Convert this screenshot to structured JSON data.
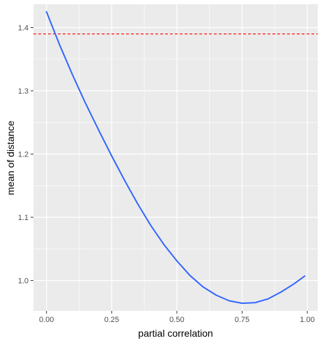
{
  "chart_data": {
    "type": "line",
    "title": "",
    "xlabel": "partial correlation",
    "ylabel": "mean of distance",
    "xlim": [
      -0.05,
      1.04
    ],
    "ylim": [
      0.952,
      1.437
    ],
    "x_ticks": [
      0.0,
      0.25,
      0.5,
      0.75,
      1.0
    ],
    "x_tick_labels": [
      "0.00",
      "0.25",
      "0.50",
      "0.75",
      "1.00"
    ],
    "y_ticks": [
      1.0,
      1.1,
      1.2,
      1.3,
      1.4
    ],
    "y_tick_labels": [
      "1.0",
      "1.1",
      "1.2",
      "1.3",
      "1.4"
    ],
    "grid": true,
    "background": "#ebebeb",
    "series": [
      {
        "color": "#3366ff",
        "x": [
          0.0,
          0.05,
          0.1,
          0.15,
          0.2,
          0.25,
          0.3,
          0.35,
          0.4,
          0.45,
          0.5,
          0.55,
          0.6,
          0.65,
          0.7,
          0.75,
          0.8,
          0.85,
          0.9,
          0.95,
          0.99
        ],
        "y": [
          1.425,
          1.373,
          1.325,
          1.28,
          1.238,
          1.197,
          1.158,
          1.121,
          1.087,
          1.057,
          1.031,
          1.008,
          0.99,
          0.977,
          0.968,
          0.964,
          0.965,
          0.971,
          0.982,
          0.995,
          1.007
        ]
      }
    ],
    "reference_line": {
      "y": 1.39,
      "color": "#ff0000",
      "style": "dashed"
    }
  }
}
